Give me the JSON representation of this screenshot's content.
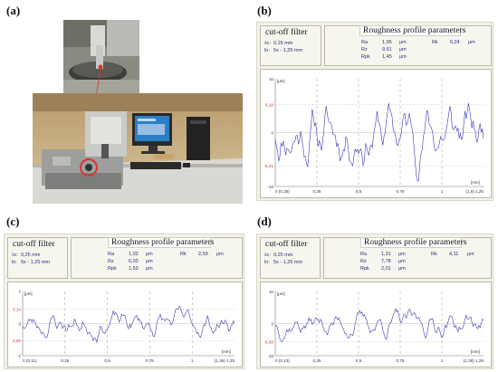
{
  "labels": {
    "a": "(a)",
    "b": "(b)",
    "c": "(c)",
    "d": "(d)"
  },
  "panels": [
    {
      "key": "b",
      "filter_title": "cut-off filter",
      "lambda_label": "λc:",
      "lambda_value": "0,25 mm",
      "ln_label": "ln:",
      "ln_value": "5x - 1,25 mm",
      "params_title": "Roughness profile parameters",
      "params": [
        {
          "name": "Ra",
          "value": "1,95",
          "unit": "μm"
        },
        {
          "name": "Rz",
          "value": "9,91",
          "unit": "μm"
        },
        {
          "name": "Rpk",
          "value": "1,45",
          "unit": "μm"
        }
      ],
      "rk": {
        "name": "Rk",
        "value": "6,24",
        "unit": "μm"
      },
      "unit_y": "[μm]",
      "unit_x": "[mm]",
      "yticks": [
        "10",
        "5,18",
        "0",
        "-6,21",
        "-10"
      ],
      "xticks": [
        "0 (0,25)",
        "0,25",
        "0,5",
        "0,75",
        "1",
        "(1,5) 1,25"
      ],
      "chart_data": {
        "type": "line",
        "ylim": [
          -10,
          10
        ],
        "xlim": [
          0,
          1.25
        ],
        "ref_lines": [
          5.18,
          -6.21
        ],
        "seed": 11,
        "amplitude": 4.2
      }
    },
    {
      "key": "c",
      "filter_title": "cut-off filter",
      "lambda_label": "λc:",
      "lambda_value": "0,25 mm",
      "ln_label": "ln:",
      "ln_value": "5x - 1,25 mm",
      "params_title": "Roughness profile parameters",
      "params": [
        {
          "name": "Ra",
          "value": "1,03",
          "unit": "μm"
        },
        {
          "name": "Rz",
          "value": "6,03",
          "unit": "μm"
        },
        {
          "name": "Rpk",
          "value": "1,53",
          "unit": "μm"
        }
      ],
      "rk": {
        "name": "Rk",
        "value": "2,59",
        "unit": "μm"
      },
      "unit_y": "[μm]",
      "unit_x": "[mm]",
      "yticks": [
        "7",
        "3,14",
        "0",
        "-3,69",
        "-7"
      ],
      "xticks": [
        "0 (0,11)",
        "0,25",
        "0,5",
        "0,75",
        "1",
        "(1,36) 1,25"
      ],
      "chart_data": {
        "type": "line",
        "ylim": [
          -7,
          7
        ],
        "xlim": [
          0,
          1.25
        ],
        "ref_lines": [
          3.14,
          -3.69
        ],
        "seed": 23,
        "amplitude": 2.1
      }
    },
    {
      "key": "d",
      "filter_title": "cut-off filter",
      "lambda_label": "λc:",
      "lambda_value": "0,25 mm",
      "ln_label": "ln:",
      "ln_value": "5x - 1,25 mm",
      "params_title": "Roughness profile parameters",
      "params": [
        {
          "name": "Ra",
          "value": "1,31",
          "unit": "μm"
        },
        {
          "name": "Rz",
          "value": "7,78",
          "unit": "μm"
        },
        {
          "name": "Rpk",
          "value": "2,01",
          "unit": "μm"
        }
      ],
      "rk": {
        "name": "Rk",
        "value": "4,11",
        "unit": "μm"
      },
      "unit_y": "[μm]",
      "unit_x": "[mm]",
      "yticks": [
        "10",
        "0",
        "-5,68",
        "-10"
      ],
      "xticks": [
        "0 (0,13)",
        "0,25",
        "0,5",
        "0,75",
        "1",
        "(1,38) 1,25"
      ],
      "chart_data": {
        "type": "line",
        "ylim": [
          -10,
          10
        ],
        "xlim": [
          0,
          1.25
        ],
        "ref_lines": [
          -5.68
        ],
        "seed": 37,
        "amplitude": 2.8
      }
    }
  ],
  "colors": {
    "profile": "#3a3ab8",
    "ref": "#cc3333",
    "grid": "#999999"
  }
}
